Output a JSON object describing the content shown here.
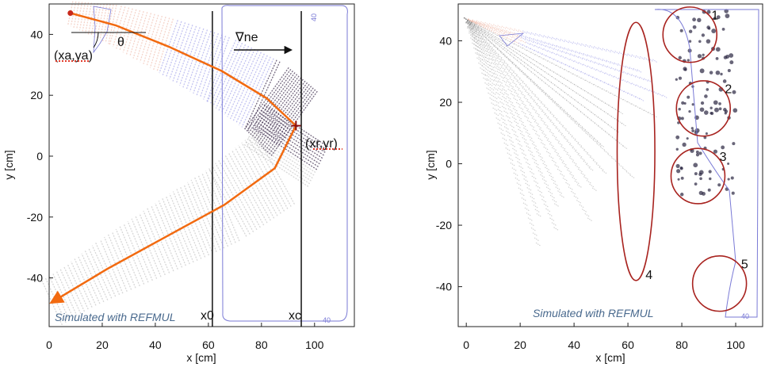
{
  "chart_data": [
    {
      "type": "scatter",
      "xlabel": "x [cm]",
      "ylabel": "y [cm]",
      "xlim": [
        0,
        115
      ],
      "ylim": [
        -56,
        50
      ],
      "xticks": [
        "0",
        "20",
        "40",
        "60",
        "80",
        "100"
      ],
      "yticks": [
        "40",
        "20",
        "0",
        "-20",
        "-40"
      ],
      "xtick_values": [
        0,
        20,
        40,
        60,
        80,
        100
      ],
      "ytick_values": [
        40,
        20,
        0,
        -20,
        -40
      ],
      "grid": false,
      "vertical_lines": [
        {
          "x": 61.5,
          "label": "x0"
        },
        {
          "x": 95,
          "label": "xc"
        }
      ],
      "ray_path": [
        {
          "x": 8,
          "y": 47
        },
        {
          "x": 25,
          "y": 43
        },
        {
          "x": 45,
          "y": 36
        },
        {
          "x": 65,
          "y": 28
        },
        {
          "x": 82,
          "y": 19
        },
        {
          "x": 93,
          "y": 10
        },
        {
          "x": 85,
          "y": -4
        },
        {
          "x": 66,
          "y": -16
        },
        {
          "x": 45,
          "y": -26
        },
        {
          "x": 22,
          "y": -37
        },
        {
          "x": 1,
          "y": -48
        }
      ],
      "launch_point": {
        "x": 8,
        "y": 47
      },
      "reflection_point": {
        "x": 93,
        "y": 10
      },
      "annotations": {
        "theta": "θ",
        "launch": "(xa,ya)",
        "reflection": "(xr,yr)",
        "gradient": "∇ne",
        "x0": "x0",
        "xc": "xc",
        "caption": "Simulated with REFMUL",
        "contour_label": "40"
      }
    },
    {
      "type": "scatter",
      "xlabel": "x [cm]",
      "ylabel": "y [cm]",
      "xlim": [
        -3,
        110
      ],
      "ylim": [
        -53,
        52
      ],
      "xticks": [
        "0",
        "20",
        "40",
        "60",
        "80",
        "100"
      ],
      "yticks": [
        "40",
        "20",
        "0",
        "-20",
        "-40"
      ],
      "xtick_values": [
        0,
        20,
        40,
        60,
        80,
        100
      ],
      "ytick_values": [
        40,
        20,
        0,
        -20,
        -40
      ],
      "grid": false,
      "regions": [
        {
          "label": "1",
          "x": 83,
          "y": 42,
          "rx": 10,
          "ry": 9
        },
        {
          "label": "2",
          "x": 88,
          "y": 18,
          "rx": 10,
          "ry": 9
        },
        {
          "label": "3",
          "x": 86,
          "y": -4,
          "rx": 10,
          "ry": 9
        },
        {
          "label": "4",
          "x": 63,
          "y": 4,
          "rx": 7,
          "ry": 42
        },
        {
          "label": "5",
          "x": 94,
          "y": -39,
          "rx": 10,
          "ry": 9
        }
      ],
      "caption": "Simulated with REFMUL",
      "contour_label": "40"
    }
  ],
  "colors": {
    "ray": "#f26a10",
    "line": "#111111",
    "region": "#a8231f",
    "contour": "#7a7ad6",
    "beam_gray": "#8c8c8c",
    "beam_pink": "#e8a08a",
    "beam_blue": "#7a7adf",
    "caption": "#4a6a8e"
  }
}
